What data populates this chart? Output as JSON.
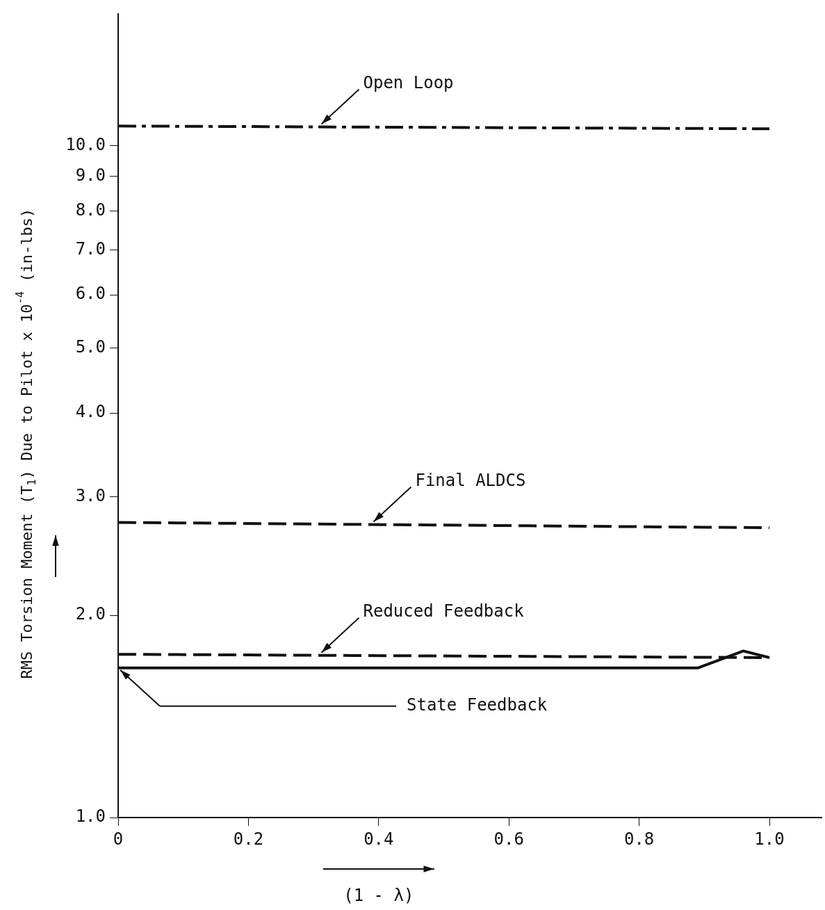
{
  "chart_data": {
    "type": "line",
    "ylabel": "RMS Torsion Moment (T$_{1}$) Due to Pilot x 10$^{-4}$ (in-lbs)",
    "xlabel": "(1 - λ)",
    "log": "y",
    "grid": false,
    "legend": false,
    "marker": "none",
    "xlim": [
      0,
      1.08
    ],
    "xticks": [
      {
        "value": 0,
        "label": "0"
      },
      0.2,
      0.4,
      0.6,
      0.8,
      {
        "value": 1,
        "label": "1.0"
      }
    ],
    "ylim": [
      1,
      15.7
    ],
    "yticks": [
      {
        "value": 1,
        "label": "1.0"
      },
      {
        "value": 2,
        "label": "2.0"
      },
      {
        "value": 3,
        "label": "3.0"
      },
      {
        "value": 4,
        "label": "4.0"
      },
      {
        "value": 5,
        "label": "5.0"
      },
      {
        "value": 6,
        "label": "6.0"
      },
      {
        "value": 7,
        "label": "7.0"
      },
      {
        "value": 8,
        "label": "8.0"
      },
      {
        "value": 9,
        "label": "9.0"
      },
      {
        "value": 10,
        "label": "10.0"
      }
    ],
    "series": [
      {
        "name": "Open Loop",
        "color": "#111111",
        "line_style": "dashdot",
        "x": [
          0,
          1
        ],
        "values": [
          10.7,
          10.6
        ]
      },
      {
        "name": "Final ALDCS",
        "color": "#111111",
        "line_style": "dashed",
        "x": [
          0,
          1
        ],
        "values": [
          2.75,
          2.7
        ]
      },
      {
        "name": "Reduced Feedback",
        "color": "#111111",
        "line_style": "dashed",
        "x": [
          0,
          1
        ],
        "values": [
          1.75,
          1.73
        ]
      },
      {
        "name": "State Feedback",
        "color": "#111111",
        "line_style": "solid",
        "x": [
          0,
          0.89,
          0.96,
          1
        ],
        "values": [
          1.67,
          1.67,
          1.77,
          1.73
        ]
      }
    ]
  }
}
